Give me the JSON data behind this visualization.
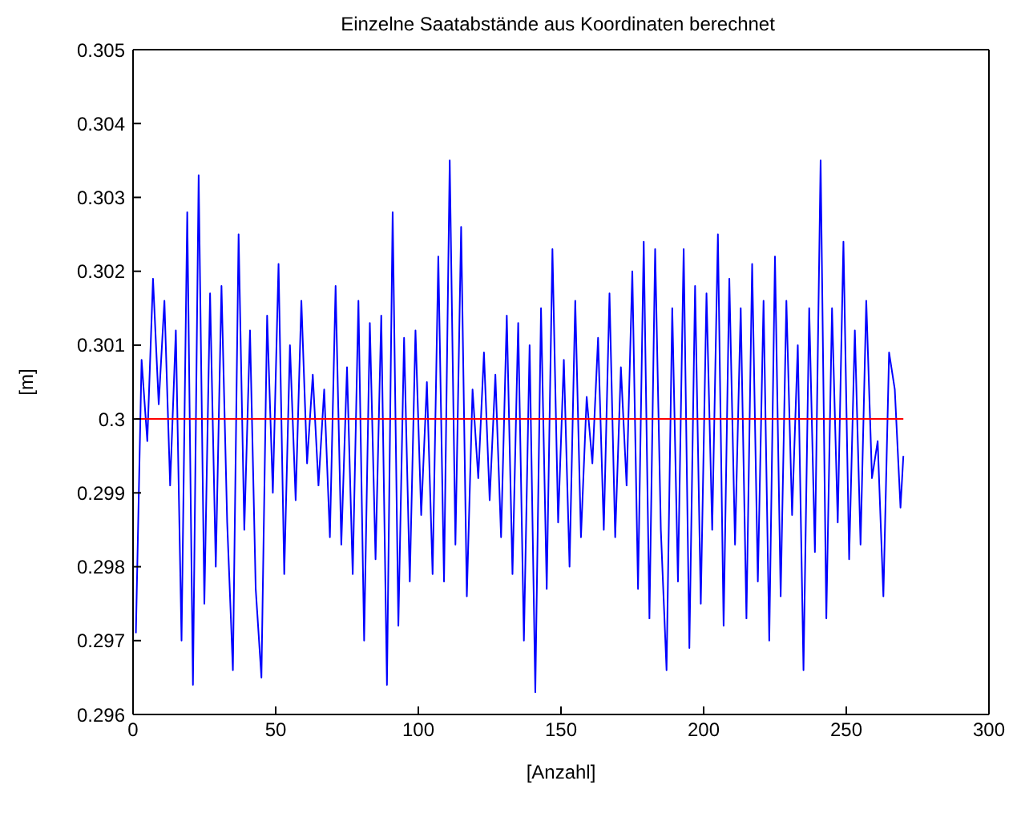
{
  "chart_data": {
    "type": "line",
    "title": "Einzelne Saatabstände aus Koordinaten berechnet",
    "xlabel": "[Anzahl]",
    "ylabel": "[m]",
    "xlim": [
      0,
      300
    ],
    "xticks": [
      0,
      50,
      100,
      150,
      200,
      250,
      300
    ],
    "ylim": [
      0.296,
      0.305
    ],
    "yticks": [
      0.296,
      0.297,
      0.298,
      0.299,
      0.3,
      0.301,
      0.302,
      0.303,
      0.304,
      0.305
    ],
    "series": [
      {
        "color": "#0000ff",
        "x": [
          1,
          3,
          5,
          7,
          9,
          11,
          13,
          15,
          17,
          19,
          21,
          23,
          25,
          27,
          29,
          31,
          33,
          35,
          37,
          39,
          41,
          43,
          45,
          47,
          49,
          51,
          53,
          55,
          57,
          59,
          61,
          63,
          65,
          67,
          69,
          71,
          73,
          75,
          77,
          79,
          81,
          83,
          85,
          87,
          89,
          91,
          93,
          95,
          97,
          99,
          101,
          103,
          105,
          107,
          109,
          111,
          113,
          115,
          117,
          119,
          121,
          123,
          125,
          127,
          129,
          131,
          133,
          135,
          137,
          139,
          141,
          143,
          145,
          147,
          149,
          151,
          153,
          155,
          157,
          159,
          161,
          163,
          165,
          167,
          169,
          171,
          173,
          175,
          177,
          179,
          181,
          183,
          185,
          187,
          189,
          191,
          193,
          195,
          197,
          199,
          201,
          203,
          205,
          207,
          209,
          211,
          213,
          215,
          217,
          219,
          221,
          223,
          225,
          227,
          229,
          231,
          233,
          235,
          237,
          239,
          241,
          243,
          245,
          247,
          249,
          251,
          253,
          255,
          257,
          259,
          261,
          263,
          265,
          267,
          269,
          270
        ],
        "values": [
          0.2971,
          0.3008,
          0.2997,
          0.3019,
          0.3002,
          0.3016,
          0.2991,
          0.3012,
          0.297,
          0.3028,
          0.2964,
          0.3033,
          0.2975,
          0.3017,
          0.298,
          0.3018,
          0.2986,
          0.2966,
          0.3025,
          0.2985,
          0.3012,
          0.2977,
          0.2965,
          0.3014,
          0.299,
          0.3021,
          0.2979,
          0.301,
          0.2989,
          0.3016,
          0.2994,
          0.3006,
          0.2991,
          0.3004,
          0.2984,
          0.3018,
          0.2983,
          0.3007,
          0.2979,
          0.3016,
          0.297,
          0.3013,
          0.2981,
          0.3014,
          0.2964,
          0.3028,
          0.2972,
          0.3011,
          0.2978,
          0.3012,
          0.2987,
          0.3005,
          0.2979,
          0.3022,
          0.2978,
          0.3035,
          0.2983,
          0.3026,
          0.2976,
          0.3004,
          0.2992,
          0.3009,
          0.2989,
          0.3006,
          0.2984,
          0.3014,
          0.2979,
          0.3013,
          0.297,
          0.301,
          0.2963,
          0.3015,
          0.2977,
          0.3023,
          0.2986,
          0.3008,
          0.298,
          0.3016,
          0.2984,
          0.3003,
          0.2994,
          0.3011,
          0.2985,
          0.3017,
          0.2984,
          0.3007,
          0.2991,
          0.302,
          0.2977,
          0.3024,
          0.2973,
          0.3023,
          0.2985,
          0.2966,
          0.3015,
          0.2978,
          0.3023,
          0.2969,
          0.3018,
          0.2975,
          0.3017,
          0.2985,
          0.3025,
          0.2972,
          0.3019,
          0.2983,
          0.3015,
          0.2973,
          0.3021,
          0.2978,
          0.3016,
          0.297,
          0.3022,
          0.2976,
          0.3016,
          0.2987,
          0.301,
          0.2966,
          0.3015,
          0.2982,
          0.3035,
          0.2973,
          0.3015,
          0.2986,
          0.3024,
          0.2981,
          0.3012,
          0.2983,
          0.3016,
          0.2992,
          0.2997,
          0.2976,
          0.3009,
          0.3004,
          0.2988,
          0.2995
        ]
      },
      {
        "color": "#ff0000",
        "x": [
          1,
          270
        ],
        "values": [
          0.3,
          0.3
        ]
      }
    ]
  }
}
